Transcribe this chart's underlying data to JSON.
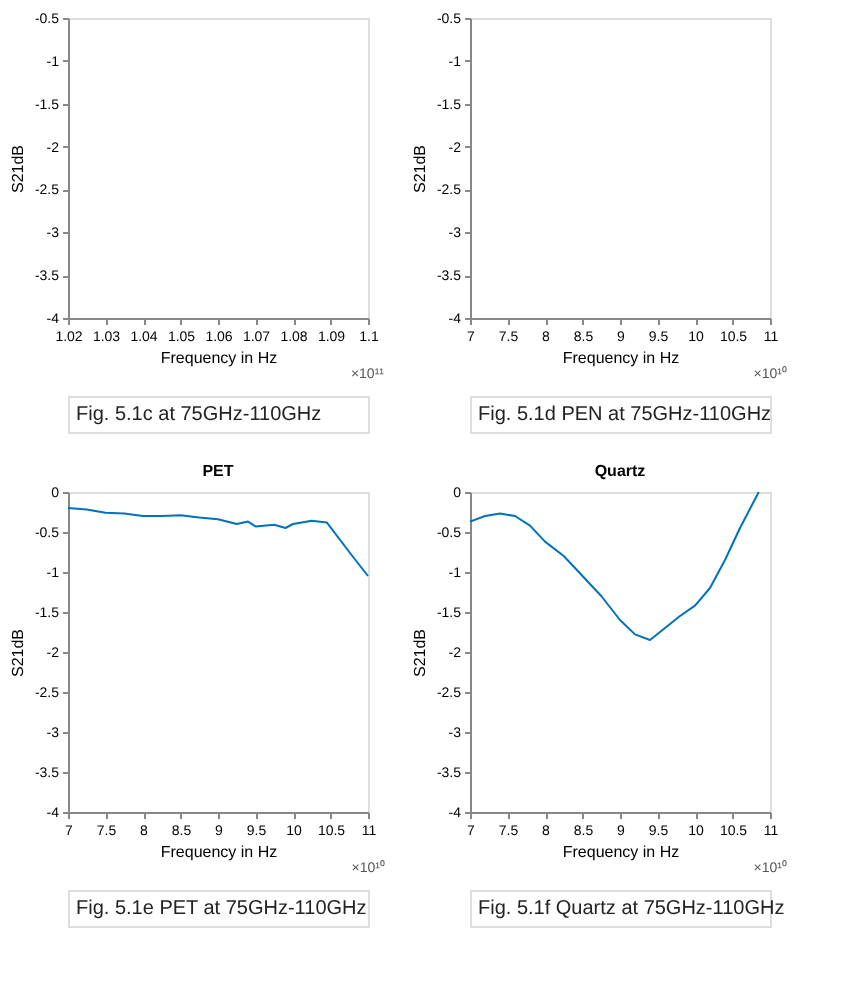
{
  "chart_data": [
    {
      "type": "line",
      "xlabel": "Frequency in Hz",
      "ylabel": "S21dB",
      "color": "#0072bd",
      "xlim": [
        1.02,
        1.1
      ],
      "xticks": [
        1.02,
        1.03,
        1.04,
        1.05,
        1.06,
        1.07,
        1.08,
        1.09,
        1.1
      ],
      "ylim": [
        -4,
        -0.5
      ],
      "yticks": [
        -4,
        -3.5,
        -3,
        -2.5,
        -2,
        -1.5,
        -1,
        -0.5
      ],
      "grid": false,
      "annotations": [
        "×10¹¹",
        "Fig. 5.1c at 75GHz-110GHz"
      ]
    },
    {
      "type": "line",
      "xlabel": "Frequency in Hz",
      "ylabel": "S21dB",
      "color": "#0072bd",
      "xlim": [
        7,
        11
      ],
      "xticks": [
        7,
        7.5,
        8,
        8.5,
        9,
        9.5,
        10,
        10.5,
        11
      ],
      "ylim": [
        -4,
        -0.5
      ],
      "yticks": [
        -4,
        -3.5,
        -3,
        -2.5,
        -2,
        -1.5,
        -1,
        -0.5
      ],
      "grid": false,
      "annotations": [
        "×10¹⁰",
        "Fig. 5.1d PEN at 75GHz-110GHz"
      ]
    },
    {
      "type": "line",
      "title": "PET",
      "xlabel": "Frequency in Hz",
      "ylabel": "S21dB",
      "x": [
        7,
        7.25,
        7.5,
        7.75,
        8,
        8.25,
        8.5,
        8.75,
        9,
        9.25,
        9.4,
        9.5,
        9.75,
        9.9,
        10,
        10.25,
        10.45,
        10.75,
        11
      ],
      "values": [
        -0.2,
        -0.22,
        -0.26,
        -0.27,
        -0.3,
        -0.3,
        -0.29,
        -0.32,
        -0.34,
        -0.4,
        -0.37,
        -0.43,
        -0.41,
        -0.45,
        -0.4,
        -0.36,
        -0.38,
        -0.75,
        -1.05
      ],
      "color": "#0072bd",
      "xlim": [
        7,
        11
      ],
      "xticks": [
        7,
        7.5,
        8,
        8.5,
        9,
        9.5,
        10,
        10.5,
        11
      ],
      "ylim": [
        -4,
        0
      ],
      "yticks": [
        -4,
        -3.5,
        -3,
        -2.5,
        -2,
        -1.5,
        -1,
        -0.5,
        0
      ],
      "grid": false,
      "annotations": [
        "×10¹⁰",
        "Fig. 5.1e PET at 75GHz-110GHz"
      ]
    },
    {
      "type": "line",
      "title": "Quartz",
      "xlabel": "Frequency in Hz",
      "ylabel": "S21dB",
      "x": [
        7,
        7.2,
        7.4,
        7.6,
        7.8,
        8,
        8.25,
        8.5,
        8.75,
        9,
        9.2,
        9.4,
        9.6,
        9.8,
        10,
        10.2,
        10.4,
        10.6,
        10.85
      ],
      "values": [
        -0.37,
        -0.3,
        -0.27,
        -0.3,
        -0.42,
        -0.62,
        -0.8,
        -1.05,
        -1.3,
        -1.6,
        -1.78,
        -1.85,
        -1.7,
        -1.55,
        -1.42,
        -1.2,
        -0.85,
        -0.45,
        0
      ],
      "color": "#0072bd",
      "xlim": [
        7,
        11
      ],
      "xticks": [
        7,
        7.5,
        8,
        8.5,
        9,
        9.5,
        10,
        10.5,
        11
      ],
      "ylim": [
        -4,
        0
      ],
      "yticks": [
        -4,
        -3.5,
        -3,
        -2.5,
        -2,
        -1.5,
        -1,
        -0.5,
        0
      ],
      "grid": false,
      "annotations": [
        "×10¹⁰",
        "Fig. 5.1f Quartz at 75GHz-110GHz"
      ]
    }
  ]
}
